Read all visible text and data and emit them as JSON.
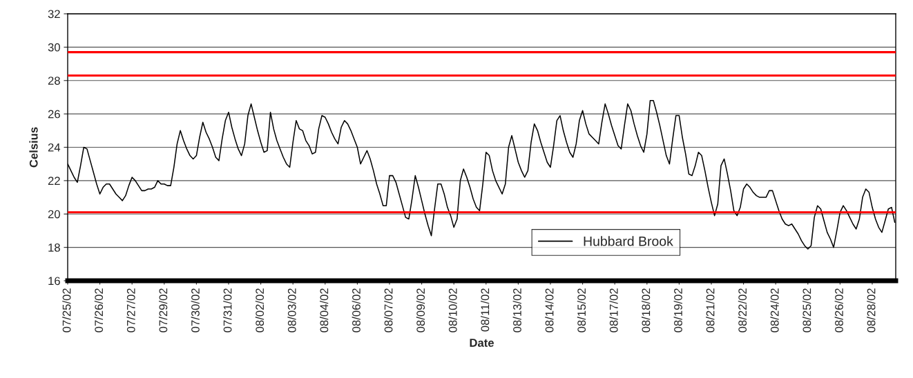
{
  "chart_data": {
    "type": "line",
    "xlabel": "Date",
    "ylabel": "Celsius",
    "categories": [
      "07/25/02",
      null,
      null,
      null,
      null,
      null,
      null,
      null,
      null,
      null,
      "07/26/02",
      null,
      null,
      null,
      null,
      null,
      null,
      null,
      null,
      null,
      "07/27/02",
      null,
      null,
      null,
      null,
      null,
      null,
      null,
      null,
      null,
      "07/29/02",
      null,
      null,
      null,
      null,
      null,
      null,
      null,
      null,
      null,
      "07/30/02",
      null,
      null,
      null,
      null,
      null,
      null,
      null,
      null,
      null,
      "07/31/02",
      null,
      null,
      null,
      null,
      null,
      null,
      null,
      null,
      null,
      "08/02/02",
      null,
      null,
      null,
      null,
      null,
      null,
      null,
      null,
      null,
      "08/03/02",
      null,
      null,
      null,
      null,
      null,
      null,
      null,
      null,
      null,
      "08/04/02",
      null,
      null,
      null,
      null,
      null,
      null,
      null,
      null,
      null,
      "08/06/02",
      null,
      null,
      null,
      null,
      null,
      null,
      null,
      null,
      null,
      "08/07/02",
      null,
      null,
      null,
      null,
      null,
      null,
      null,
      null,
      null,
      "08/09/02",
      null,
      null,
      null,
      null,
      null,
      null,
      null,
      null,
      null,
      "08/10/02",
      null,
      null,
      null,
      null,
      null,
      null,
      null,
      null,
      null,
      "08/11/02",
      null,
      null,
      null,
      null,
      null,
      null,
      null,
      null,
      null,
      "08/13/02",
      null,
      null,
      null,
      null,
      null,
      null,
      null,
      null,
      null,
      "08/14/02",
      null,
      null,
      null,
      null,
      null,
      null,
      null,
      null,
      null,
      "08/15/02",
      null,
      null,
      null,
      null,
      null,
      null,
      null,
      null,
      null,
      "08/17/02",
      null,
      null,
      null,
      null,
      null,
      null,
      null,
      null,
      null,
      "08/18/02",
      null,
      null,
      null,
      null,
      null,
      null,
      null,
      null,
      null,
      "08/19/02",
      null,
      null,
      null,
      null,
      null,
      null,
      null,
      null,
      null,
      "08/21/02",
      null,
      null,
      null,
      null,
      null,
      null,
      null,
      null,
      null,
      "08/22/02",
      null,
      null,
      null,
      null,
      null,
      null,
      null,
      null,
      null,
      "08/24/02",
      null,
      null,
      null,
      null,
      null,
      null,
      null,
      null,
      null,
      "08/25/02",
      null,
      null,
      null,
      null,
      null,
      null,
      null,
      null,
      null,
      "08/26/02",
      null,
      null,
      null,
      null,
      null,
      null,
      null,
      null,
      null,
      "08/28/02",
      null,
      null,
      null,
      null,
      null,
      null,
      null
    ],
    "series": [
      {
        "name": "Hubbard Brook",
        "color": "#000000",
        "values": [
          23.0,
          22.6,
          22.2,
          21.9,
          22.9,
          24.0,
          23.9,
          23.2,
          22.5,
          21.8,
          21.2,
          21.6,
          21.8,
          21.8,
          21.5,
          21.2,
          21.0,
          20.8,
          21.1,
          21.7,
          22.2,
          22.0,
          21.7,
          21.4,
          21.4,
          21.5,
          21.5,
          21.6,
          22.0,
          21.8,
          21.8,
          21.7,
          21.7,
          22.8,
          24.2,
          25.0,
          24.4,
          23.9,
          23.5,
          23.3,
          23.5,
          24.6,
          25.5,
          24.9,
          24.5,
          24.0,
          23.4,
          23.2,
          24.5,
          25.6,
          26.1,
          25.2,
          24.5,
          23.9,
          23.5,
          24.2,
          25.9,
          26.6,
          25.8,
          25.0,
          24.3,
          23.7,
          23.8,
          26.1,
          25.1,
          24.4,
          23.9,
          23.4,
          23.0,
          22.8,
          24.3,
          25.6,
          25.1,
          25.0,
          24.4,
          24.1,
          23.6,
          23.7,
          25.1,
          25.9,
          25.8,
          25.4,
          24.9,
          24.5,
          24.2,
          25.2,
          25.6,
          25.4,
          25.0,
          24.5,
          24.0,
          23.0,
          23.4,
          23.8,
          23.3,
          22.6,
          21.8,
          21.2,
          20.5,
          20.5,
          22.3,
          22.3,
          21.9,
          21.2,
          20.5,
          19.8,
          19.7,
          20.9,
          22.3,
          21.6,
          20.8,
          20.0,
          19.3,
          18.7,
          20.3,
          21.8,
          21.8,
          21.2,
          20.4,
          19.9,
          19.2,
          19.7,
          22.0,
          22.7,
          22.2,
          21.6,
          20.9,
          20.4,
          20.2,
          21.8,
          23.7,
          23.5,
          22.6,
          22.0,
          21.6,
          21.2,
          21.8,
          24.0,
          24.7,
          23.9,
          23.1,
          22.6,
          22.2,
          22.6,
          24.3,
          25.4,
          25.0,
          24.3,
          23.7,
          23.1,
          22.8,
          24.1,
          25.6,
          25.9,
          25.0,
          24.3,
          23.7,
          23.4,
          24.2,
          25.6,
          26.2,
          25.4,
          24.8,
          24.6,
          24.4,
          24.2,
          25.5,
          26.6,
          26.0,
          25.3,
          24.7,
          24.1,
          23.9,
          25.3,
          26.6,
          26.2,
          25.4,
          24.7,
          24.1,
          23.7,
          24.8,
          26.8,
          26.8,
          26.1,
          25.3,
          24.4,
          23.5,
          23.0,
          24.5,
          25.9,
          25.9,
          24.6,
          23.6,
          22.4,
          22.3,
          22.9,
          23.7,
          23.5,
          22.6,
          21.6,
          20.7,
          19.9,
          20.6,
          22.9,
          23.3,
          22.4,
          21.4,
          20.2,
          19.9,
          20.4,
          21.5,
          21.8,
          21.6,
          21.3,
          21.1,
          21.0,
          21.0,
          21.0,
          21.4,
          21.4,
          20.8,
          20.2,
          19.7,
          19.4,
          19.3,
          19.4,
          19.1,
          18.8,
          18.4,
          18.1,
          17.9,
          18.1,
          19.8,
          20.5,
          20.3,
          19.6,
          18.9,
          18.5,
          18.0,
          19.0,
          20.1,
          20.5,
          20.2,
          19.8,
          19.4,
          19.1,
          19.7,
          21.0,
          21.5,
          21.3,
          20.4,
          19.7,
          19.2,
          18.9,
          19.6,
          20.3,
          20.4,
          19.5
        ]
      }
    ],
    "ylim": [
      16,
      32
    ],
    "yticks": [
      16,
      18,
      20,
      22,
      24,
      26,
      28,
      30,
      32
    ],
    "ref_lines": [
      {
        "axis": "y",
        "value": 29.7,
        "color": "#ff0000"
      },
      {
        "axis": "y",
        "value": 28.3,
        "color": "#ff0000"
      },
      {
        "axis": "y",
        "value": 20.1,
        "color": "#ff0000"
      }
    ],
    "grid": "y",
    "legend": "bottom",
    "marker": "none",
    "line_style": "solid"
  }
}
